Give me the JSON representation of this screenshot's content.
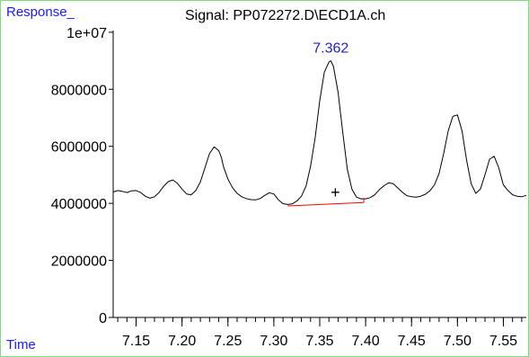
{
  "chart_data": {
    "type": "line",
    "title": "Signal: PP072272.D\\ECD1A.ch",
    "ylabel": "Response_",
    "xlabel": "Time",
    "xlim": [
      7.125,
      7.575
    ],
    "ylim": [
      0,
      10500000
    ],
    "x_ticks": [
      7.15,
      7.2,
      7.25,
      7.3,
      7.35,
      7.4,
      7.45,
      7.5,
      7.55
    ],
    "x_tick_labels": [
      "7.15",
      "7.20",
      "7.25",
      "7.30",
      "7.35",
      "7.40",
      "7.45",
      "7.50",
      "7.55"
    ],
    "y_ticks": [
      0,
      2000000,
      4000000,
      6000000,
      8000000,
      10000000
    ],
    "y_tick_labels": [
      "0",
      "2000000",
      "4000000",
      "6000000",
      "8000000",
      "1e+07"
    ],
    "series": [
      {
        "color": "#000000",
        "x": [
          7.125,
          7.13,
          7.135,
          7.14,
          7.145,
          7.15,
          7.155,
          7.16,
          7.165,
          7.17,
          7.175,
          7.18,
          7.185,
          7.19,
          7.195,
          7.2,
          7.205,
          7.21,
          7.215,
          7.22,
          7.225,
          7.23,
          7.235,
          7.24,
          7.243,
          7.245,
          7.25,
          7.255,
          7.26,
          7.265,
          7.27,
          7.275,
          7.28,
          7.285,
          7.29,
          7.295,
          7.3,
          7.305,
          7.31,
          7.315,
          7.32,
          7.325,
          7.33,
          7.335,
          7.34,
          7.345,
          7.35,
          7.355,
          7.36,
          7.362,
          7.365,
          7.37,
          7.375,
          7.38,
          7.385,
          7.39,
          7.395,
          7.4,
          7.405,
          7.41,
          7.415,
          7.42,
          7.425,
          7.43,
          7.435,
          7.44,
          7.445,
          7.45,
          7.455,
          7.46,
          7.465,
          7.47,
          7.475,
          7.48,
          7.485,
          7.49,
          7.495,
          7.5,
          7.505,
          7.51,
          7.515,
          7.52,
          7.525,
          7.53,
          7.535,
          7.54,
          7.545,
          7.55,
          7.555,
          7.56,
          7.565,
          7.57,
          7.575
        ],
        "y": [
          4400000,
          4450000,
          4420000,
          4380000,
          4440000,
          4450000,
          4380000,
          4250000,
          4180000,
          4230000,
          4380000,
          4600000,
          4760000,
          4820000,
          4700000,
          4500000,
          4330000,
          4300000,
          4450000,
          4750000,
          5250000,
          5750000,
          5980000,
          5850000,
          5600000,
          5300000,
          4850000,
          4550000,
          4350000,
          4230000,
          4170000,
          4130000,
          4120000,
          4170000,
          4280000,
          4370000,
          4330000,
          4120000,
          3990000,
          3960000,
          3980000,
          4080000,
          4250000,
          4600000,
          5300000,
          6300000,
          7600000,
          8600000,
          8950000,
          9000000,
          8800000,
          7900000,
          6500000,
          5200000,
          4500000,
          4220000,
          4160000,
          4160000,
          4200000,
          4300000,
          4480000,
          4620000,
          4720000,
          4690000,
          4540000,
          4390000,
          4270000,
          4230000,
          4220000,
          4250000,
          4320000,
          4440000,
          4650000,
          5050000,
          5750000,
          6550000,
          7050000,
          7100000,
          6550000,
          5500000,
          4680000,
          4350000,
          4500000,
          5000000,
          5550000,
          5650000,
          5250000,
          4650000,
          4450000,
          4300000,
          4250000,
          4230000,
          4280000
        ]
      }
    ],
    "peak_label": {
      "text": "7.362",
      "x": 7.362,
      "y": 9000000,
      "color": "#1f1fd0"
    },
    "baseline": {
      "x": [
        7.315,
        7.398
      ],
      "y": [
        3910000,
        4030000
      ],
      "color": "#ff0000"
    },
    "marker": {
      "text": "+",
      "x": 7.367,
      "y": 4380000
    }
  }
}
